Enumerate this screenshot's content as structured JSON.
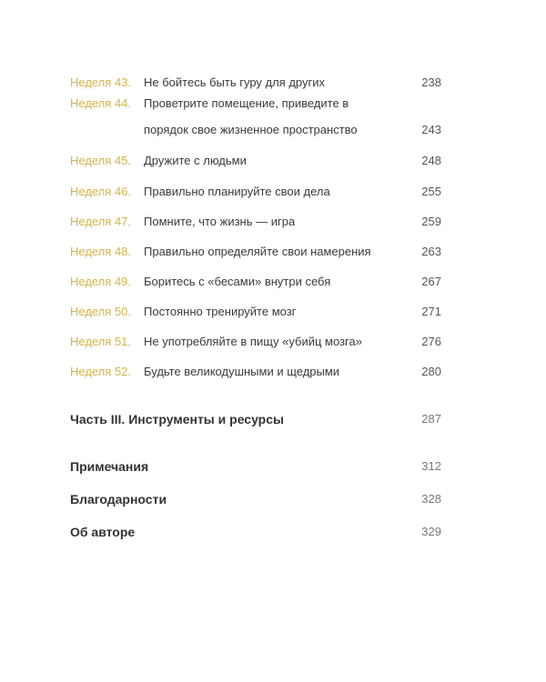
{
  "weeks": [
    {
      "label": "Неделя 43.",
      "title": "Не бойтесь быть гуру для других",
      "page": "238"
    },
    {
      "label": "Неделя 44.",
      "title": "Проветрите помещение, приведите в порядок свое жизненное пространство",
      "page": "243"
    },
    {
      "label": "Неделя 45.",
      "title": "Дружите с людьми",
      "page": "248"
    },
    {
      "label": "Неделя 46.",
      "title": "Правильно планируйте свои дела",
      "page": "255"
    },
    {
      "label": "Неделя 47.",
      "title": "Помните, что жизнь — игра",
      "page": "259"
    },
    {
      "label": "Неделя 48.",
      "title": "Правильно определяйте свои намерения",
      "page": "263"
    },
    {
      "label": "Неделя 49.",
      "title": "Боритесь с «бесами» внутри себя",
      "page": "267"
    },
    {
      "label": "Неделя 50.",
      "title": "Постоянно тренируйте мозг",
      "page": "271"
    },
    {
      "label": "Неделя 51.",
      "title": "Не употребляйте в пищу «убийц мозга»",
      "page": "276"
    },
    {
      "label": "Неделя 52.",
      "title": "Будьте великодушными и щедрыми",
      "page": "280"
    }
  ],
  "sections": [
    {
      "title": "Часть III. Инструменты и ресурсы",
      "page": "287"
    },
    {
      "title": "Примечания",
      "page": "312"
    },
    {
      "title": "Благодарности",
      "page": "328"
    },
    {
      "title": "Об авторе",
      "page": "329"
    }
  ],
  "accent_color": "#d2b54c"
}
